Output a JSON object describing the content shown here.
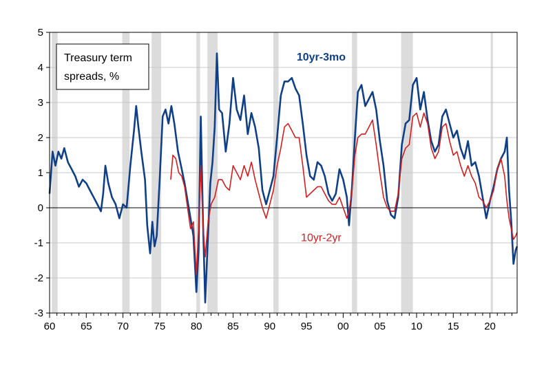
{
  "chart_data": {
    "type": "line",
    "title": "",
    "legend_box": [
      "Treasury term",
      "spreads, %"
    ],
    "xlabel": "",
    "ylabel": "",
    "xlim": [
      1960.0,
      2023.7
    ],
    "ylim": [
      -3,
      5
    ],
    "grid": true,
    "x_tick_labels": [
      {
        "year": 1960,
        "label": "60"
      },
      {
        "year": 1965,
        "label": "65"
      },
      {
        "year": 1970,
        "label": "70"
      },
      {
        "year": 1975,
        "label": "75"
      },
      {
        "year": 1980,
        "label": "80"
      },
      {
        "year": 1985,
        "label": "85"
      },
      {
        "year": 1990,
        "label": "90"
      },
      {
        "year": 1995,
        "label": "95"
      },
      {
        "year": 2000,
        "label": "00"
      },
      {
        "year": 2005,
        "label": "05"
      },
      {
        "year": 2010,
        "label": "10"
      },
      {
        "year": 2015,
        "label": "15"
      },
      {
        "year": 2020,
        "label": "20"
      }
    ],
    "y_ticks": [
      5,
      4,
      3,
      2,
      1,
      0,
      -1,
      -2,
      -3
    ],
    "recessions": [
      [
        1960.3,
        1961.1
      ],
      [
        1969.9,
        1970.9
      ],
      [
        1973.9,
        1975.2
      ],
      [
        1980.0,
        1980.5
      ],
      [
        1981.5,
        1982.9
      ],
      [
        1990.5,
        1991.2
      ],
      [
        2001.2,
        2001.9
      ],
      [
        2007.9,
        2009.5
      ],
      [
        2020.1,
        2020.4
      ]
    ],
    "series": [
      {
        "name": "10yr-3mo",
        "color": "#0e3f87",
        "label_year": 1997,
        "label_value": 4.2,
        "points": [
          [
            1960.0,
            0.4
          ],
          [
            1960.4,
            1.6
          ],
          [
            1960.8,
            1.2
          ],
          [
            1961.2,
            1.6
          ],
          [
            1961.6,
            1.4
          ],
          [
            1962.0,
            1.7
          ],
          [
            1962.5,
            1.3
          ],
          [
            1963.0,
            1.1
          ],
          [
            1963.5,
            0.9
          ],
          [
            1964.0,
            0.6
          ],
          [
            1964.5,
            0.8
          ],
          [
            1965.0,
            0.7
          ],
          [
            1965.5,
            0.5
          ],
          [
            1966.0,
            0.3
          ],
          [
            1966.5,
            0.1
          ],
          [
            1967.0,
            -0.1
          ],
          [
            1967.3,
            0.4
          ],
          [
            1967.6,
            1.2
          ],
          [
            1968.0,
            0.7
          ],
          [
            1968.5,
            0.3
          ],
          [
            1969.0,
            0.1
          ],
          [
            1969.5,
            -0.3
          ],
          [
            1970.0,
            0.1
          ],
          [
            1970.5,
            0.0
          ],
          [
            1971.0,
            1.2
          ],
          [
            1971.5,
            2.2
          ],
          [
            1971.8,
            2.9
          ],
          [
            1972.1,
            2.3
          ],
          [
            1972.5,
            1.6
          ],
          [
            1973.0,
            0.8
          ],
          [
            1973.3,
            -0.5
          ],
          [
            1973.7,
            -1.3
          ],
          [
            1974.0,
            -0.4
          ],
          [
            1974.3,
            -1.1
          ],
          [
            1974.6,
            -0.8
          ],
          [
            1975.0,
            0.8
          ],
          [
            1975.4,
            2.6
          ],
          [
            1975.8,
            2.8
          ],
          [
            1976.2,
            2.4
          ],
          [
            1976.6,
            2.9
          ],
          [
            1977.0,
            2.4
          ],
          [
            1977.5,
            1.6
          ],
          [
            1978.0,
            1.1
          ],
          [
            1978.4,
            0.7
          ],
          [
            1978.8,
            0.2
          ],
          [
            1979.2,
            -0.3
          ],
          [
            1979.6,
            -0.8
          ],
          [
            1980.0,
            -2.4
          ],
          [
            1980.3,
            -1.2
          ],
          [
            1980.6,
            2.6
          ],
          [
            1980.9,
            -0.4
          ],
          [
            1981.2,
            -2.7
          ],
          [
            1981.5,
            -1.2
          ],
          [
            1981.9,
            0.7
          ],
          [
            1982.2,
            1.3
          ],
          [
            1982.5,
            2.3
          ],
          [
            1982.8,
            4.4
          ],
          [
            1983.1,
            2.8
          ],
          [
            1983.5,
            2.7
          ],
          [
            1984.0,
            1.6
          ],
          [
            1984.5,
            2.4
          ],
          [
            1985.0,
            3.7
          ],
          [
            1985.5,
            2.8
          ],
          [
            1986.0,
            2.5
          ],
          [
            1986.5,
            3.2
          ],
          [
            1987.0,
            2.1
          ],
          [
            1987.5,
            2.7
          ],
          [
            1988.0,
            2.3
          ],
          [
            1988.5,
            1.7
          ],
          [
            1989.0,
            0.5
          ],
          [
            1989.5,
            0.1
          ],
          [
            1990.0,
            0.5
          ],
          [
            1990.5,
            0.9
          ],
          [
            1991.0,
            2.0
          ],
          [
            1991.5,
            3.2
          ],
          [
            1992.0,
            3.6
          ],
          [
            1992.5,
            3.6
          ],
          [
            1993.0,
            3.7
          ],
          [
            1993.5,
            3.4
          ],
          [
            1994.0,
            3.2
          ],
          [
            1994.5,
            2.4
          ],
          [
            1995.0,
            1.5
          ],
          [
            1995.5,
            0.9
          ],
          [
            1996.0,
            0.8
          ],
          [
            1996.5,
            1.3
          ],
          [
            1997.0,
            1.2
          ],
          [
            1997.5,
            0.9
          ],
          [
            1998.0,
            0.4
          ],
          [
            1998.5,
            0.2
          ],
          [
            1999.0,
            0.4
          ],
          [
            1999.5,
            1.1
          ],
          [
            2000.0,
            0.8
          ],
          [
            2000.5,
            0.3
          ],
          [
            2000.8,
            -0.5
          ],
          [
            2001.2,
            0.6
          ],
          [
            2001.6,
            2.0
          ],
          [
            2002.0,
            3.3
          ],
          [
            2002.5,
            3.5
          ],
          [
            2003.0,
            2.9
          ],
          [
            2003.5,
            3.1
          ],
          [
            2004.0,
            3.3
          ],
          [
            2004.5,
            2.8
          ],
          [
            2005.0,
            1.9
          ],
          [
            2005.5,
            1.2
          ],
          [
            2006.0,
            0.2
          ],
          [
            2006.5,
            -0.2
          ],
          [
            2007.0,
            -0.3
          ],
          [
            2007.5,
            0.3
          ],
          [
            2008.0,
            1.8
          ],
          [
            2008.5,
            2.4
          ],
          [
            2009.0,
            2.5
          ],
          [
            2009.5,
            3.5
          ],
          [
            2010.0,
            3.7
          ],
          [
            2010.5,
            2.8
          ],
          [
            2011.0,
            3.3
          ],
          [
            2011.5,
            2.5
          ],
          [
            2012.0,
            1.9
          ],
          [
            2012.5,
            1.6
          ],
          [
            2013.0,
            1.8
          ],
          [
            2013.5,
            2.6
          ],
          [
            2014.0,
            2.8
          ],
          [
            2014.5,
            2.4
          ],
          [
            2015.0,
            2.0
          ],
          [
            2015.5,
            2.2
          ],
          [
            2016.0,
            1.7
          ],
          [
            2016.5,
            1.4
          ],
          [
            2017.0,
            1.9
          ],
          [
            2017.5,
            1.2
          ],
          [
            2018.0,
            1.3
          ],
          [
            2018.5,
            0.9
          ],
          [
            2019.0,
            0.3
          ],
          [
            2019.5,
            -0.3
          ],
          [
            2020.0,
            0.2
          ],
          [
            2020.5,
            0.6
          ],
          [
            2021.0,
            1.1
          ],
          [
            2021.5,
            1.4
          ],
          [
            2022.0,
            1.6
          ],
          [
            2022.3,
            2.0
          ],
          [
            2022.6,
            0.5
          ],
          [
            2022.9,
            -0.4
          ],
          [
            2023.2,
            -1.6
          ],
          [
            2023.5,
            -1.2
          ],
          [
            2023.7,
            -1.1
          ]
        ]
      },
      {
        "name": "10yr-2yr",
        "color": "#d41e1e",
        "label_year": 1997,
        "label_value": -0.95,
        "points": [
          [
            1976.5,
            0.8
          ],
          [
            1976.8,
            1.5
          ],
          [
            1977.2,
            1.4
          ],
          [
            1977.6,
            1.0
          ],
          [
            1978.0,
            0.9
          ],
          [
            1978.4,
            0.6
          ],
          [
            1978.8,
            0.0
          ],
          [
            1979.2,
            -0.6
          ],
          [
            1979.6,
            -0.4
          ],
          [
            1980.0,
            -1.9
          ],
          [
            1980.3,
            -0.6
          ],
          [
            1980.6,
            1.2
          ],
          [
            1980.9,
            -0.5
          ],
          [
            1981.2,
            -1.4
          ],
          [
            1981.6,
            -0.4
          ],
          [
            1982.0,
            0.1
          ],
          [
            1982.5,
            0.3
          ],
          [
            1983.0,
            0.8
          ],
          [
            1983.5,
            0.8
          ],
          [
            1984.0,
            0.6
          ],
          [
            1984.5,
            0.5
          ],
          [
            1985.0,
            1.2
          ],
          [
            1985.5,
            1.0
          ],
          [
            1986.0,
            0.8
          ],
          [
            1986.5,
            1.2
          ],
          [
            1987.0,
            0.9
          ],
          [
            1987.5,
            1.3
          ],
          [
            1988.0,
            0.8
          ],
          [
            1988.5,
            0.4
          ],
          [
            1989.0,
            0.0
          ],
          [
            1989.5,
            -0.3
          ],
          [
            1990.0,
            0.1
          ],
          [
            1990.5,
            0.5
          ],
          [
            1991.0,
            1.2
          ],
          [
            1991.5,
            1.7
          ],
          [
            1992.0,
            2.3
          ],
          [
            1992.5,
            2.4
          ],
          [
            1993.0,
            2.2
          ],
          [
            1993.5,
            2.0
          ],
          [
            1994.0,
            2.0
          ],
          [
            1994.5,
            1.2
          ],
          [
            1995.0,
            0.3
          ],
          [
            1995.5,
            0.4
          ],
          [
            1996.0,
            0.5
          ],
          [
            1996.5,
            0.6
          ],
          [
            1997.0,
            0.6
          ],
          [
            1997.5,
            0.4
          ],
          [
            1998.0,
            0.2
          ],
          [
            1998.5,
            0.1
          ],
          [
            1999.0,
            0.1
          ],
          [
            1999.5,
            0.3
          ],
          [
            2000.0,
            0.0
          ],
          [
            2000.5,
            -0.3
          ],
          [
            2000.8,
            -0.1
          ],
          [
            2001.2,
            0.5
          ],
          [
            2001.6,
            1.5
          ],
          [
            2002.0,
            2.0
          ],
          [
            2002.5,
            2.1
          ],
          [
            2003.0,
            2.1
          ],
          [
            2003.5,
            2.3
          ],
          [
            2004.0,
            2.5
          ],
          [
            2004.5,
            1.8
          ],
          [
            2005.0,
            1.0
          ],
          [
            2005.5,
            0.3
          ],
          [
            2006.0,
            0.0
          ],
          [
            2006.5,
            -0.1
          ],
          [
            2007.0,
            -0.1
          ],
          [
            2007.5,
            0.4
          ],
          [
            2008.0,
            1.4
          ],
          [
            2008.5,
            1.7
          ],
          [
            2009.0,
            1.8
          ],
          [
            2009.5,
            2.6
          ],
          [
            2010.0,
            2.7
          ],
          [
            2010.5,
            2.3
          ],
          [
            2011.0,
            2.7
          ],
          [
            2011.5,
            2.4
          ],
          [
            2012.0,
            1.7
          ],
          [
            2012.5,
            1.4
          ],
          [
            2013.0,
            1.6
          ],
          [
            2013.5,
            2.3
          ],
          [
            2014.0,
            2.4
          ],
          [
            2014.5,
            1.9
          ],
          [
            2015.0,
            1.5
          ],
          [
            2015.5,
            1.6
          ],
          [
            2016.0,
            1.2
          ],
          [
            2016.5,
            0.9
          ],
          [
            2017.0,
            1.2
          ],
          [
            2017.5,
            0.9
          ],
          [
            2018.0,
            0.7
          ],
          [
            2018.5,
            0.3
          ],
          [
            2019.0,
            0.2
          ],
          [
            2019.5,
            0.0
          ],
          [
            2020.0,
            0.2
          ],
          [
            2020.5,
            0.5
          ],
          [
            2021.0,
            1.1
          ],
          [
            2021.5,
            1.4
          ],
          [
            2022.0,
            0.9
          ],
          [
            2022.3,
            0.2
          ],
          [
            2022.6,
            -0.3
          ],
          [
            2022.9,
            -0.6
          ],
          [
            2023.2,
            -0.9
          ],
          [
            2023.5,
            -0.8
          ],
          [
            2023.7,
            -0.7
          ]
        ]
      }
    ]
  }
}
